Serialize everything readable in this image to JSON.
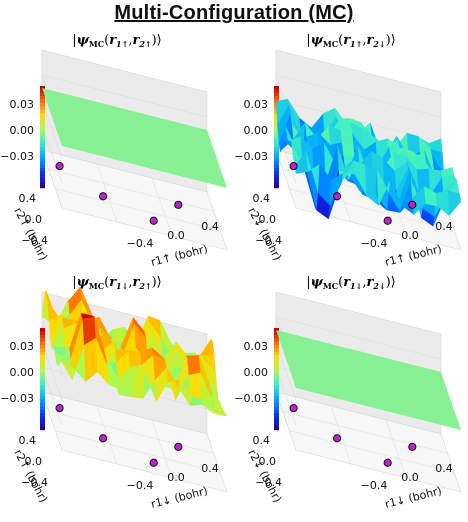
{
  "page": {
    "title": "Multi-Configuration  (MC)"
  },
  "chart_data": [
    {
      "type": "surface3d",
      "title": "|ψMC(r1↑,r2↑)⟩",
      "title_parts": {
        "pre": "|",
        "psi": "ψ",
        "sub": "MC",
        "arg1": "r",
        "sub1": "1↑",
        "comma": ",",
        "arg2": "r",
        "sub2": "2↑",
        "close": ")⟩"
      },
      "xlabel": "r1↑ (bohr)",
      "ylabel": "r2↑ (bohr)",
      "xticks": [
        "−0.4",
        "0.0",
        "0.4"
      ],
      "yticks": [
        "0.4",
        "0.0",
        "−0.4"
      ],
      "zticks": [
        "0.03",
        "0.00",
        "−0.03"
      ],
      "zlim": [
        -0.04,
        0.04
      ],
      "surface": "zero",
      "surface_color": "#7ff08c",
      "nuclei_markers": 4,
      "marker_color": "#c21fd1",
      "colormap": "rainbow"
    },
    {
      "type": "surface3d",
      "title": "|ψMC(r1↑,r2↓)⟩",
      "title_parts": {
        "pre": "|",
        "psi": "ψ",
        "sub": "MC",
        "arg1": "r",
        "sub1": "1↑",
        "comma": ",",
        "arg2": "r",
        "sub2": "2↓",
        "close": ")⟩"
      },
      "xlabel": "r1↑ (bohr)",
      "ylabel": "r2↓ (bohr)",
      "xticks": [
        "−0.4",
        "0.0",
        "0.4"
      ],
      "yticks": [
        "0.4",
        "0.0",
        "−0.4"
      ],
      "zticks": [
        "0.03",
        "0.00",
        "−0.03"
      ],
      "zlim": [
        -0.04,
        0.04
      ],
      "surface": "negative",
      "nuclei_markers": 4,
      "marker_color": "#c21fd1",
      "colormap": "rainbow"
    },
    {
      "type": "surface3d",
      "title": "|ψMC(r1↓,r2↑)⟩",
      "title_parts": {
        "pre": "|",
        "psi": "ψ",
        "sub": "MC",
        "arg1": "r",
        "sub1": "1↓",
        "comma": ",",
        "arg2": "r",
        "sub2": "2↑",
        "close": ")⟩"
      },
      "xlabel": "r1↓ (bohr)",
      "ylabel": "r2↑ (bohr)",
      "xticks": [
        "−0.4",
        "0.0",
        "0.4"
      ],
      "yticks": [
        "0.4",
        "0.0",
        "−0.4"
      ],
      "zticks": [
        "0.03",
        "0.00",
        "−0.03"
      ],
      "zlim": [
        -0.04,
        0.04
      ],
      "surface": "positive",
      "nuclei_markers": 4,
      "marker_color": "#c21fd1",
      "colormap": "rainbow"
    },
    {
      "type": "surface3d",
      "title": "|ψMC(r1↓,r2↓)⟩",
      "title_parts": {
        "pre": "|",
        "psi": "ψ",
        "sub": "MC",
        "arg1": "r",
        "sub1": "1↓",
        "comma": ",",
        "arg2": "r",
        "sub2": "2↓",
        "close": ")⟩"
      },
      "xlabel": "r1↓ (bohr)",
      "ylabel": "r2↓ (bohr)",
      "xticks": [
        "−0.4",
        "0.0",
        "0.4"
      ],
      "yticks": [
        "0.4",
        "0.0",
        "−0.4"
      ],
      "zticks": [
        "0.03",
        "0.00",
        "−0.03"
      ],
      "zlim": [
        -0.04,
        0.04
      ],
      "surface": "zero",
      "surface_color": "#7ff08c",
      "nuclei_markers": 4,
      "marker_color": "#c21fd1",
      "colormap": "rainbow"
    }
  ]
}
